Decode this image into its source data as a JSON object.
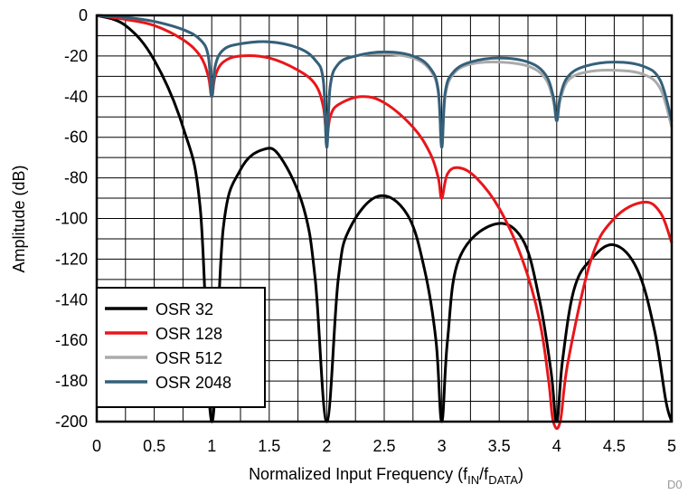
{
  "chart_data": {
    "type": "line",
    "xlabel_main": "Normalized Input Frequency (f",
    "xlabel_sub1": "IN",
    "xlabel_mid": "/f",
    "xlabel_sub2": "DATA",
    "xlabel_end": ")",
    "ylabel": "Amplitude (dB)",
    "xlim": [
      0,
      5
    ],
    "ylim": [
      -200,
      0
    ],
    "x_ticks": [
      0,
      0.5,
      1,
      1.5,
      2,
      2.5,
      3,
      3.5,
      4,
      4.5,
      5
    ],
    "x_tick_labels": [
      "0",
      "0.5",
      "1",
      "1.5",
      "2",
      "2.5",
      "3",
      "3.5",
      "4",
      "4.5",
      "5"
    ],
    "y_ticks": [
      0,
      -20,
      -40,
      -60,
      -80,
      -100,
      -120,
      -140,
      -160,
      -180,
      -200
    ],
    "y_tick_labels": [
      "0",
      "-20",
      "-40",
      "-60",
      "-80",
      "-100",
      "-120",
      "-140",
      "-160",
      "-180",
      "-200"
    ],
    "grid": true,
    "minor_grid_x_step": 0.25,
    "minor_grid_y_step": 10,
    "legend_position": "bottom-left",
    "series": [
      {
        "name": "OSR 32",
        "color": "#000000",
        "x": [
          0,
          0.25,
          0.5,
          0.75,
          0.9,
          1.0,
          1.1,
          1.25,
          1.45,
          1.6,
          1.8,
          1.9,
          2.0,
          2.1,
          2.2,
          2.45,
          2.7,
          2.85,
          2.95,
          3.0,
          3.05,
          3.15,
          3.45,
          3.7,
          3.85,
          3.95,
          4.0,
          4.05,
          4.15,
          4.3,
          4.5,
          4.7,
          4.85,
          4.95,
          5.0
        ],
        "values": [
          0,
          -5,
          -22,
          -55,
          -95,
          -200,
          -105,
          -76,
          -66,
          -70,
          -95,
          -130,
          -200,
          -130,
          -105,
          -89,
          -98,
          -125,
          -160,
          -200,
          -160,
          -120,
          -103,
          -110,
          -140,
          -175,
          -200,
          -170,
          -135,
          -120,
          -113,
          -125,
          -155,
          -190,
          -200
        ]
      },
      {
        "name": "OSR 128",
        "color": "#e8161b",
        "x": [
          0,
          0.25,
          0.5,
          0.75,
          0.9,
          0.97,
          1.0,
          1.03,
          1.1,
          1.25,
          1.5,
          1.75,
          1.9,
          1.97,
          2.0,
          2.03,
          2.1,
          2.3,
          2.5,
          2.75,
          2.9,
          2.97,
          3.0,
          3.05,
          3.15,
          3.3,
          3.5,
          3.7,
          3.85,
          3.93,
          3.97,
          4.03,
          4.1,
          4.3,
          4.5,
          4.75,
          4.9,
          5.0
        ],
        "values": [
          0,
          -2,
          -5,
          -12,
          -20,
          -30,
          -40,
          -30,
          -23,
          -20,
          -21,
          -27,
          -34,
          -45,
          -60,
          -50,
          -44,
          -40,
          -43,
          -55,
          -68,
          -80,
          -90,
          -78,
          -75,
          -80,
          -95,
          -120,
          -150,
          -180,
          -200,
          -200,
          -170,
          -120,
          -100,
          -92,
          -97,
          -112
        ]
      },
      {
        "name": "OSR 512",
        "color": "#aaaaaa",
        "x": [
          0,
          0.25,
          0.5,
          0.75,
          0.9,
          0.97,
          1.0,
          1.03,
          1.1,
          1.25,
          1.5,
          1.75,
          1.9,
          1.97,
          2.0,
          2.03,
          2.1,
          2.25,
          2.5,
          2.75,
          2.9,
          2.97,
          3.0,
          3.03,
          3.1,
          3.25,
          3.5,
          3.75,
          3.9,
          3.97,
          4.0,
          4.03,
          4.1,
          4.25,
          4.5,
          4.75,
          4.9,
          5.0
        ],
        "values": [
          0,
          -1,
          -3,
          -7,
          -12,
          -20,
          -40,
          -25,
          -17,
          -14,
          -13,
          -16,
          -22,
          -32,
          -65,
          -35,
          -24,
          -20,
          -19,
          -21,
          -27,
          -38,
          -65,
          -40,
          -29,
          -24,
          -23,
          -25,
          -31,
          -42,
          -52,
          -42,
          -32,
          -28,
          -27,
          -29,
          -36,
          -55
        ]
      },
      {
        "name": "OSR 2048",
        "color": "#34607a",
        "x": [
          0,
          0.25,
          0.5,
          0.75,
          0.9,
          0.97,
          1.0,
          1.03,
          1.1,
          1.25,
          1.5,
          1.75,
          1.9,
          1.97,
          2.0,
          2.03,
          2.1,
          2.25,
          2.5,
          2.75,
          2.9,
          2.97,
          3.0,
          3.03,
          3.1,
          3.25,
          3.5,
          3.75,
          3.9,
          3.97,
          4.0,
          4.03,
          4.1,
          4.25,
          4.5,
          4.75,
          4.9,
          5.0
        ],
        "values": [
          0,
          -1,
          -3,
          -7,
          -12,
          -20,
          -40,
          -25,
          -17,
          -14,
          -13,
          -16,
          -22,
          -32,
          -65,
          -35,
          -24,
          -20,
          -18,
          -20,
          -26,
          -37,
          -65,
          -38,
          -28,
          -23,
          -21,
          -23,
          -29,
          -40,
          -52,
          -40,
          -30,
          -25,
          -23,
          -25,
          -32,
          -52
        ]
      }
    ],
    "corner_label": "D0"
  }
}
